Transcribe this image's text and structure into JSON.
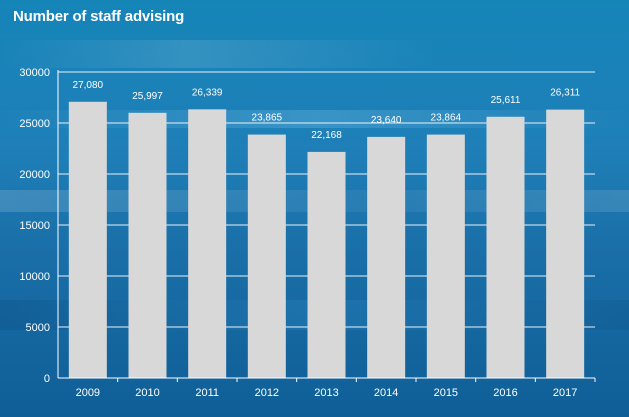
{
  "title": "Number of staff advising",
  "colors": {
    "bar": "#d8d8d8",
    "grid": "#e8f2f8",
    "axis": "#ffffff",
    "text": "#ffffff"
  },
  "chart_data": {
    "type": "bar",
    "title": "Number of staff advising",
    "xlabel": "",
    "ylabel": "",
    "categories": [
      "2009",
      "2010",
      "2011",
      "2012",
      "2013",
      "2014",
      "2015",
      "2016",
      "2017"
    ],
    "values": [
      27080,
      25997,
      26339,
      23865,
      22168,
      23640,
      23864,
      25611,
      26311
    ],
    "data_labels": [
      "27,080",
      "25,997",
      "26,339",
      "23,865",
      "22,168",
      "23,640",
      "23,864",
      "25,611",
      "26,311"
    ],
    "ylim": [
      0,
      30000
    ],
    "yticks": [
      "0",
      "5000",
      "10000",
      "15000",
      "20000",
      "25000",
      "30000"
    ],
    "ytick_values": [
      0,
      5000,
      10000,
      15000,
      20000,
      25000,
      30000
    ],
    "grid": true,
    "legend": "none"
  }
}
